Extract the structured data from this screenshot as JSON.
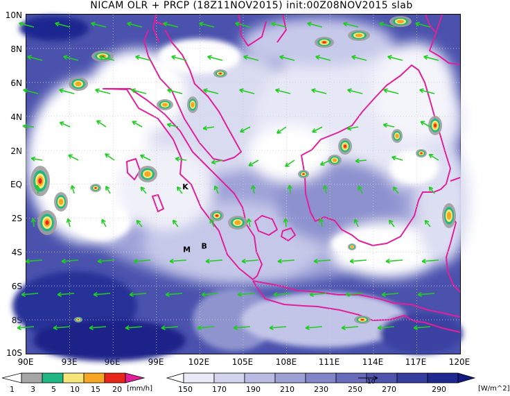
{
  "title": "NICAM OLR + PRCP (18Z11NOV2015) init:00Z08NOV2015 slab",
  "map": {
    "lat_labels": [
      "10N",
      "8N",
      "6N",
      "4N",
      "2N",
      "EQ",
      "2S",
      "4S",
      "6S",
      "8S",
      "10S"
    ],
    "lon_labels": [
      "90E",
      "93E",
      "96E",
      "99E",
      "102E",
      "105E",
      "108E",
      "111E",
      "114E",
      "117E",
      "120E"
    ],
    "point_labels": [
      {
        "text": "K",
        "lon": 101.0,
        "lat": -0.3
      },
      {
        "text": "M",
        "lon": 101.1,
        "lat": -4.0
      },
      {
        "text": "B",
        "lon": 102.3,
        "lat": -3.8
      }
    ],
    "coastline_color": "#e0209a",
    "wind_color": "#22cc22"
  },
  "precip_colorbar": {
    "labels": [
      "1",
      "3",
      "5",
      "10",
      "15",
      "20"
    ],
    "unit": "[mm/h]",
    "colors": [
      "#ffffff",
      "#a6a6a6",
      "#1fb885",
      "#f7e77a",
      "#f5a623",
      "#e8251b",
      "#e0209a"
    ]
  },
  "olr_colorbar": {
    "labels": [
      "150",
      "170",
      "190",
      "210",
      "230",
      "250",
      "270",
      "290"
    ],
    "unit": "[W/m^2]",
    "colors": [
      "#ffffff",
      "#e9eaf6",
      "#d2d4ee",
      "#b8bbe2",
      "#9da1d6",
      "#8286c9",
      "#686cbb",
      "#4e54ad",
      "#363d9f",
      "#1f2790",
      "#101a80"
    ]
  },
  "wind_label": "10"
}
